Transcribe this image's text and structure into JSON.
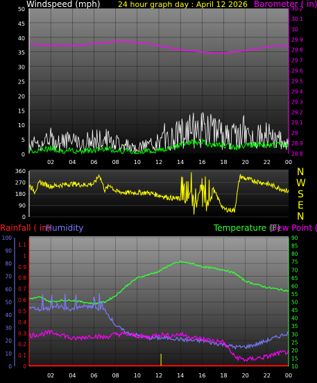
{
  "header": {
    "windspeed_label": "Windspeed (mph)",
    "graph_day": "24 hour graph day : April 12 2026",
    "barometer_label": "Barometer ( in)"
  },
  "colors": {
    "windspeed": "#ffffff",
    "wind_avg": "#00ff00",
    "barometer": "#ff00ff",
    "wind_direction": "#ffff00",
    "rainfall": "#ff0000",
    "humidity": "#7b7bff",
    "temperature": "#33ff33",
    "dew_point": "#ff00ff",
    "compass": "#ffff00"
  },
  "compass": [
    "N",
    "W",
    "S",
    "E",
    "N"
  ],
  "chart_data": [
    {
      "type": "line",
      "name": "wind-baro",
      "x_ticks": [
        "02",
        "04",
        "06",
        "08",
        "10",
        "12",
        "14",
        "16",
        "18",
        "20",
        "22",
        "00"
      ],
      "left_axis": {
        "ylim": [
          0,
          50
        ],
        "ticks": [
          "0",
          "5",
          "10",
          "15",
          "20",
          "25",
          "30",
          "35",
          "40",
          "45",
          "50"
        ]
      },
      "right_axis": {
        "ylim": [
          28.8,
          30.2
        ],
        "ticks": [
          "28.8",
          "28.9",
          "29",
          "29.1",
          "29.2",
          "29.3",
          "29.4",
          "29.5",
          "29.6",
          "29.7",
          "29.8",
          "29.9",
          "30",
          "30.1",
          "30.2"
        ]
      },
      "series": [
        {
          "name": "Windspeed",
          "axis": "left",
          "hours": [
            0,
            1,
            2,
            3,
            4,
            5,
            6,
            7,
            8,
            9,
            10,
            11,
            12,
            13,
            14,
            15,
            16,
            17,
            18,
            19,
            20,
            21,
            22,
            23,
            24
          ],
          "values": [
            4,
            3,
            5,
            4,
            4,
            3,
            4,
            5,
            4,
            3,
            2,
            3,
            4,
            5,
            7,
            8,
            8,
            8,
            6,
            6,
            6,
            6,
            5,
            5,
            5
          ]
        },
        {
          "name": "Wind Avg",
          "axis": "left",
          "hours": [
            0,
            1,
            2,
            3,
            4,
            5,
            6,
            7,
            8,
            9,
            10,
            11,
            12,
            13,
            14,
            15,
            16,
            17,
            18,
            19,
            20,
            21,
            22,
            23,
            24
          ],
          "values": [
            1,
            1,
            2,
            1,
            1,
            1,
            1,
            2,
            1,
            1,
            0,
            1,
            1,
            2,
            3,
            4,
            4,
            3,
            3,
            2,
            3,
            3,
            3,
            3,
            3
          ]
        },
        {
          "name": "Barometer",
          "axis": "right",
          "hours": [
            0,
            1,
            2,
            3,
            4,
            5,
            6,
            7,
            8,
            9,
            10,
            11,
            12,
            13,
            14,
            15,
            16,
            17,
            18,
            19,
            20,
            21,
            22,
            23,
            24
          ],
          "values": [
            29.86,
            29.85,
            29.84,
            29.84,
            29.84,
            29.85,
            29.86,
            29.87,
            29.88,
            29.88,
            29.87,
            29.86,
            29.84,
            29.82,
            29.8,
            29.79,
            29.78,
            29.77,
            29.77,
            29.78,
            29.79,
            29.81,
            29.83,
            29.84,
            29.84
          ]
        }
      ]
    },
    {
      "type": "scatter",
      "name": "wind-direction",
      "y_ticks": [
        "0",
        "90",
        "180",
        "270",
        "360"
      ],
      "ylim": [
        0,
        360
      ],
      "series": [
        {
          "name": "Wind Direction",
          "hours": [
            0,
            0.5,
            1,
            2,
            3,
            4,
            5,
            6,
            6.5,
            7,
            7.5,
            8,
            9,
            10,
            11,
            12,
            13,
            14,
            14.5,
            15,
            15.5,
            16,
            16.5,
            17,
            18,
            19,
            19.5,
            20,
            21,
            22,
            23,
            24
          ],
          "values": [
            250,
            200,
            270,
            240,
            250,
            260,
            250,
            260,
            330,
            210,
            250,
            200,
            190,
            190,
            190,
            170,
            150,
            140,
            120,
            200,
            80,
            300,
            60,
            220,
            60,
            50,
            320,
            300,
            280,
            260,
            230,
            200
          ]
        }
      ]
    },
    {
      "type": "line",
      "name": "rain-humidity-temp",
      "x_ticks": [
        "02",
        "04",
        "06",
        "08",
        "10",
        "12",
        "14",
        "16",
        "18",
        "20",
        "22",
        "00"
      ],
      "rain_axis": {
        "ylim": [
          0,
          1.1
        ],
        "ticks": [
          "0",
          "0.1",
          "0.2",
          "0.3",
          "0.4",
          "0.5",
          "0.6",
          "0.7",
          "0.8",
          "0.9",
          "1",
          "1.1"
        ]
      },
      "humidity_axis": {
        "ylim": [
          0,
          100
        ],
        "ticks": [
          "0",
          "10",
          "20",
          "30",
          "40",
          "50",
          "60",
          "70",
          "80",
          "90",
          "100"
        ]
      },
      "temp_axis": {
        "ylim": [
          10,
          90
        ],
        "ticks": [
          "10",
          "15",
          "20",
          "25",
          "30",
          "35",
          "40",
          "45",
          "50",
          "55",
          "60",
          "65",
          "70",
          "75",
          "80",
          "85",
          "90"
        ]
      },
      "labels": {
        "rainfall": "Rainfall ( in)",
        "humidity": "Humidity",
        "temperature": "Temperature (F)",
        "dew_point": "Dew Point (F)"
      },
      "series": [
        {
          "name": "Humidity",
          "axis": "humidity",
          "hours": [
            0,
            1,
            2,
            3,
            4,
            5,
            6,
            7,
            8,
            9,
            10,
            11,
            12,
            13,
            14,
            15,
            16,
            17,
            18,
            19,
            20,
            21,
            22,
            23,
            24
          ],
          "values": [
            46,
            44,
            45,
            46,
            44,
            47,
            45,
            44,
            32,
            26,
            24,
            22,
            22,
            22,
            21,
            20,
            20,
            18,
            17,
            15,
            15,
            17,
            20,
            23,
            26
          ]
        },
        {
          "name": "Temperature",
          "axis": "temp",
          "hours": [
            0,
            1,
            2,
            3,
            4,
            5,
            6,
            7,
            8,
            9,
            10,
            11,
            12,
            13,
            14,
            15,
            16,
            17,
            18,
            19,
            20,
            21,
            22,
            23,
            24
          ],
          "values": [
            52,
            53,
            50,
            51,
            51,
            50,
            49,
            50,
            54,
            60,
            65,
            67,
            69,
            73,
            75,
            74,
            72,
            71,
            70,
            68,
            63,
            61,
            59,
            58,
            57
          ]
        },
        {
          "name": "Dew Point",
          "axis": "temp",
          "hours": [
            0,
            1,
            2,
            3,
            4,
            5,
            6,
            7,
            8,
            9,
            10,
            11,
            12,
            13,
            14,
            15,
            16,
            17,
            18,
            19,
            20,
            21,
            22,
            23,
            24
          ],
          "values": [
            29,
            30,
            31,
            30,
            27,
            28,
            29,
            28,
            30,
            30,
            29,
            28,
            30,
            29,
            30,
            28,
            27,
            26,
            25,
            16,
            14,
            15,
            16,
            18,
            19
          ]
        },
        {
          "name": "Rainfall",
          "axis": "rain",
          "hours": [
            0,
            24
          ],
          "values": [
            0,
            0
          ]
        }
      ]
    }
  ]
}
